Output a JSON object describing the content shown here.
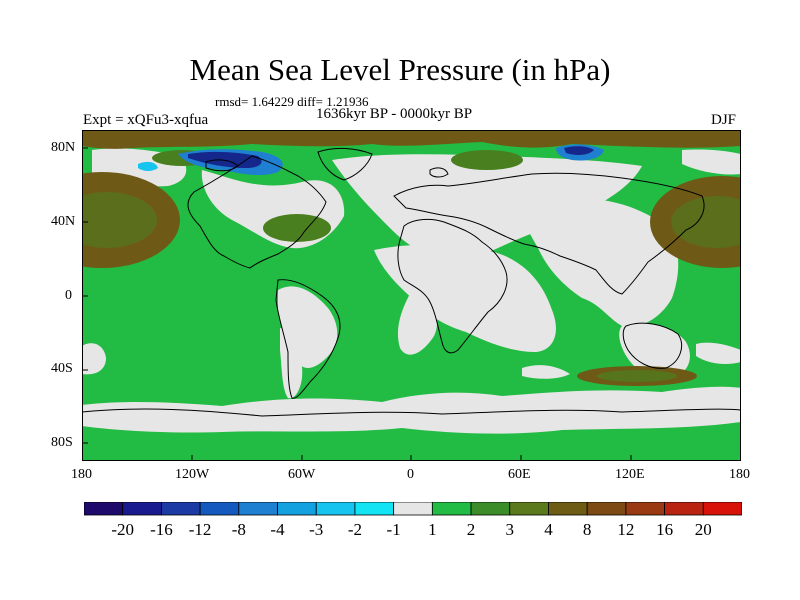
{
  "title": "Mean Sea Level Pressure (in hPa)",
  "stats": "rmsd= 1.64229 diff= 1.21936",
  "period": "1636kyr BP - 0000kyr BP",
  "experiment": "Expt = xQFu3-xqfua",
  "season": "DJF",
  "map": {
    "projection": "cylindrical equidistant",
    "lat_ticks": [
      "80N",
      "40N",
      "0",
      "40S",
      "80S"
    ],
    "lon_ticks": [
      "180",
      "120W",
      "60W",
      "0",
      "60E",
      "120E",
      "180"
    ]
  },
  "colorbar": {
    "colors": [
      "#1e0a6b",
      "#1a1a8f",
      "#1b3aa4",
      "#1459bd",
      "#1f7fd0",
      "#14a1e0",
      "#17c4ef",
      "#12e4f4",
      "#e6e6e6",
      "#22bb44",
      "#3c8c2a",
      "#5b7a1c",
      "#6e5c14",
      "#7d4a13",
      "#9a3a12",
      "#b82410",
      "#d81208"
    ],
    "labels": [
      "-20",
      "-16",
      "-12",
      "-8",
      "-4",
      "-3",
      "-2",
      "-1",
      "1",
      "2",
      "3",
      "4",
      "8",
      "12",
      "16",
      "20"
    ]
  },
  "palette": {
    "neutral": "#e6e6e6",
    "green": "#22bb44",
    "dark_green": "#4a7f20",
    "brown": "#6e5a16",
    "blue_dark": "#15278a",
    "blue": "#1f7fd0",
    "cyan": "#17c4ef"
  }
}
